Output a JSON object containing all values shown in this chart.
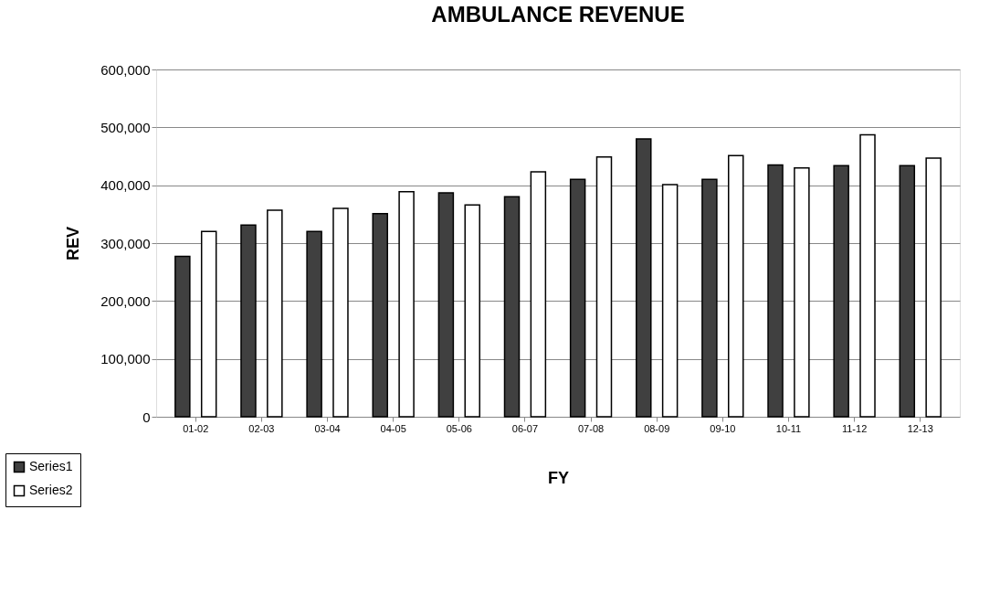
{
  "chart_data": {
    "type": "bar",
    "title": "AMBULANCE REVENUE",
    "xlabel": "FY",
    "ylabel": "REV",
    "categories": [
      "01-02",
      "02-03",
      "03-04",
      "04-05",
      "05-06",
      "06-07",
      "07-08",
      "08-09",
      "09-10",
      "10-11",
      "11-12",
      "12-13"
    ],
    "series": [
      {
        "name": "Series1",
        "color": "#404040",
        "values": [
          277000,
          331000,
          320000,
          351000,
          387000,
          380000,
          410000,
          480000,
          410000,
          435000,
          434000,
          434000
        ]
      },
      {
        "name": "Series2",
        "color": "#ffffff",
        "values": [
          320000,
          357000,
          360000,
          389000,
          366000,
          423000,
          449000,
          401000,
          451000,
          430000,
          487000,
          447000
        ]
      }
    ],
    "ylim": [
      0,
      600000
    ],
    "yticks": [
      0,
      {
        "value": 100000,
        "label": "100,000"
      },
      {
        "value": 200000,
        "label": "200,000"
      },
      {
        "value": 300000,
        "label": "300,000"
      },
      {
        "value": 400000,
        "label": "400,000"
      },
      {
        "value": 500000,
        "label": "500,000"
      },
      {
        "value": 600000,
        "label": "600,000"
      }
    ],
    "grid": "y",
    "legend": "bottom left"
  }
}
